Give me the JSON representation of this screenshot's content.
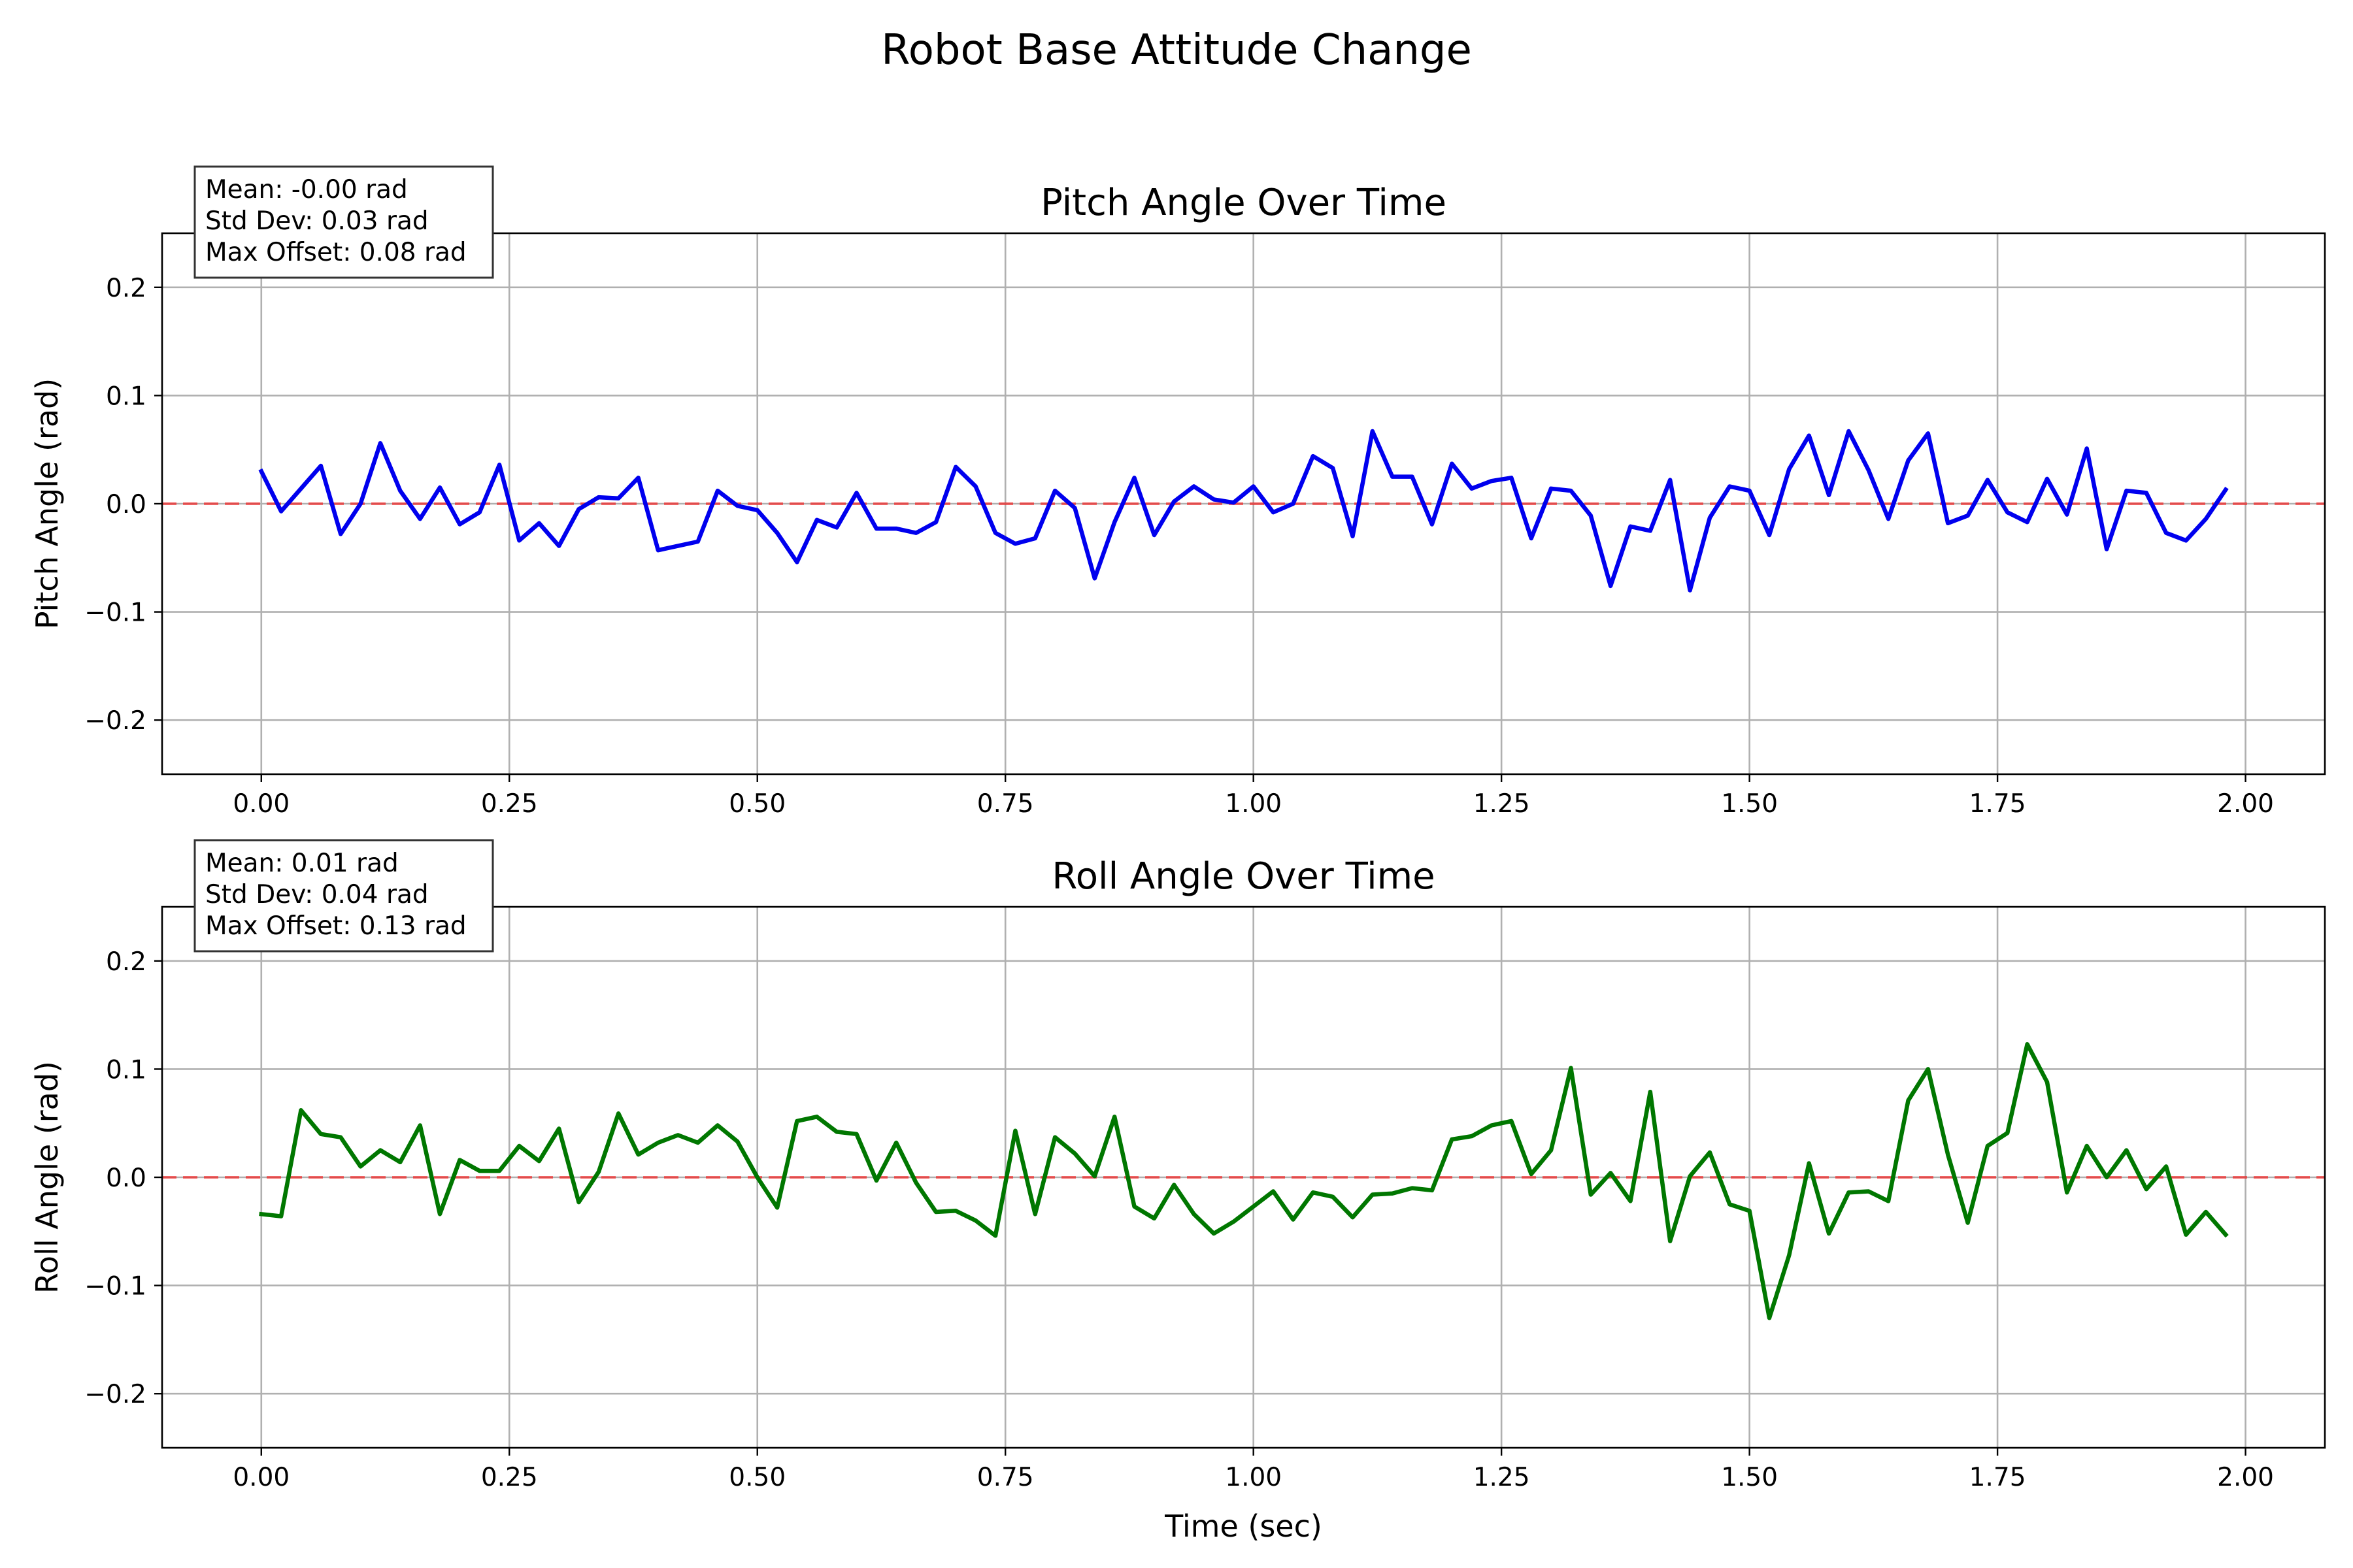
{
  "figure": {
    "title": "Robot Base Attitude Change"
  },
  "chart_data": [
    {
      "type": "line",
      "title": "Pitch Angle Over Time",
      "xlabel": "",
      "ylabel": "Pitch Angle (rad)",
      "xlim": [
        -0.1,
        2.08
      ],
      "ylim": [
        -0.25,
        0.25
      ],
      "xticks": [
        0.0,
        0.25,
        0.5,
        0.75,
        1.0,
        1.25,
        1.5,
        1.75,
        2.0
      ],
      "xtick_labels": [
        "0.00",
        "0.25",
        "0.50",
        "0.75",
        "1.00",
        "1.25",
        "1.50",
        "1.75",
        "2.00"
      ],
      "yticks": [
        -0.2,
        -0.1,
        0.0,
        0.1,
        0.2
      ],
      "ytick_labels": [
        "−0.2",
        "−0.1",
        "0.0",
        "0.1",
        "0.2"
      ],
      "grid": true,
      "reference_line": {
        "y": 0.0,
        "style": "dashed",
        "color": "#ff0000"
      },
      "stats": [
        "Mean: -0.00 rad",
        "Std Dev: 0.03 rad",
        "Max Offset: 0.08 rad"
      ],
      "series": [
        {
          "color": "#0000ee",
          "x_start": 0.0,
          "x_step": 0.02,
          "values": [
            0.03,
            -0.007,
            0.014,
            0.035,
            -0.028,
            0.0,
            0.056,
            0.012,
            -0.014,
            0.015,
            -0.019,
            -0.008,
            0.036,
            -0.034,
            -0.018,
            -0.039,
            -0.005,
            0.006,
            0.005,
            0.024,
            -0.043,
            -0.039,
            -0.035,
            0.012,
            -0.002,
            -0.006,
            -0.027,
            -0.054,
            -0.015,
            -0.022,
            0.01,
            -0.023,
            -0.023,
            -0.027,
            -0.017,
            0.034,
            0.016,
            -0.027,
            -0.037,
            -0.032,
            0.012,
            -0.004,
            -0.069,
            -0.017,
            0.024,
            -0.029,
            0.002,
            0.016,
            0.004,
            0.001,
            0.016,
            -0.008,
            0.0,
            0.044,
            0.033,
            -0.03,
            0.067,
            0.025,
            0.025,
            -0.019,
            0.037,
            0.014,
            0.021,
            0.024,
            -0.032,
            0.014,
            0.012,
            -0.011,
            -0.076,
            -0.021,
            -0.025,
            0.022,
            -0.08,
            -0.013,
            0.016,
            0.012,
            -0.029,
            0.032,
            0.063,
            0.008,
            0.067,
            0.031,
            -0.014,
            0.04,
            0.065,
            -0.018,
            -0.011,
            0.022,
            -0.008,
            -0.017,
            0.023,
            -0.01,
            0.051,
            -0.042,
            0.012,
            0.01,
            -0.027,
            -0.034,
            -0.014,
            0.013
          ]
        }
      ]
    },
    {
      "type": "line",
      "title": "Roll Angle Over Time",
      "xlabel": "Time (sec)",
      "ylabel": "Roll Angle (rad)",
      "xlim": [
        -0.1,
        2.08
      ],
      "ylim": [
        -0.25,
        0.25
      ],
      "xticks": [
        0.0,
        0.25,
        0.5,
        0.75,
        1.0,
        1.25,
        1.5,
        1.75,
        2.0
      ],
      "xtick_labels": [
        "0.00",
        "0.25",
        "0.50",
        "0.75",
        "1.00",
        "1.25",
        "1.50",
        "1.75",
        "2.00"
      ],
      "yticks": [
        -0.2,
        -0.1,
        0.0,
        0.1,
        0.2
      ],
      "ytick_labels": [
        "−0.2",
        "−0.1",
        "0.0",
        "0.1",
        "0.2"
      ],
      "grid": true,
      "reference_line": {
        "y": 0.0,
        "style": "dashed",
        "color": "#ff0000"
      },
      "stats": [
        "Mean: 0.01 rad",
        "Std Dev: 0.04 rad",
        "Max Offset: 0.13 rad"
      ],
      "series": [
        {
          "color": "#007700",
          "x_start": 0.0,
          "x_step": 0.02,
          "values": [
            -0.034,
            -0.036,
            0.062,
            0.04,
            0.037,
            0.01,
            0.025,
            0.014,
            0.048,
            -0.034,
            0.016,
            0.006,
            0.006,
            0.029,
            0.015,
            0.045,
            -0.023,
            0.005,
            0.059,
            0.021,
            0.032,
            0.039,
            0.032,
            0.048,
            0.033,
            0.0,
            -0.028,
            0.052,
            0.056,
            0.042,
            0.04,
            -0.003,
            0.032,
            -0.005,
            -0.032,
            -0.031,
            -0.04,
            -0.054,
            0.043,
            -0.034,
            0.037,
            0.022,
            0.001,
            0.056,
            -0.027,
            -0.038,
            -0.007,
            -0.034,
            -0.052,
            -0.041,
            -0.027,
            -0.013,
            -0.039,
            -0.014,
            -0.018,
            -0.037,
            -0.016,
            -0.015,
            -0.01,
            -0.012,
            0.035,
            0.038,
            0.048,
            0.052,
            0.003,
            0.025,
            0.101,
            -0.016,
            0.004,
            -0.022,
            0.079,
            -0.059,
            0.001,
            0.023,
            -0.025,
            -0.031,
            -0.13,
            -0.072,
            0.013,
            -0.052,
            -0.014,
            -0.013,
            -0.022,
            0.071,
            0.1,
            0.021,
            -0.042,
            0.029,
            0.041,
            0.123,
            0.088,
            -0.014,
            0.029,
            0.0,
            0.025,
            -0.011,
            0.01,
            -0.053,
            -0.032,
            -0.053
          ]
        }
      ]
    }
  ]
}
